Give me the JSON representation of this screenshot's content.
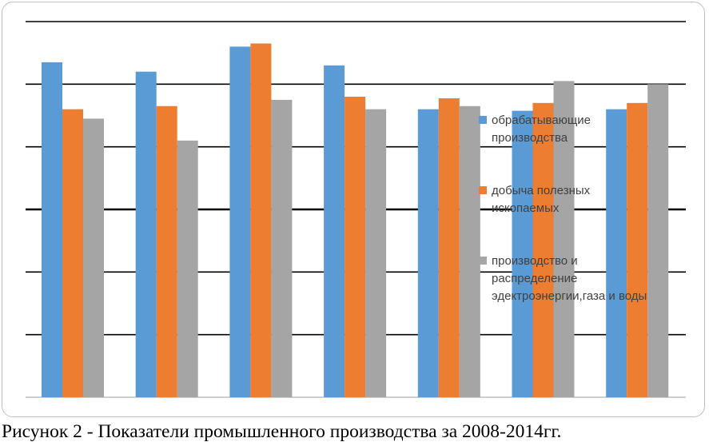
{
  "caption": "Рисунок 2 - Показатели промышленного производства за 2008-2014гг.",
  "chart_data": {
    "type": "bar",
    "categories": [
      "",
      "",
      "",
      "",
      "",
      "",
      ""
    ],
    "series": [
      {
        "name": "обрабатывающие производства",
        "color": "#5b9bd5",
        "values": [
          1.07,
          1.04,
          1.12,
          1.06,
          0.92,
          0.915,
          0.92
        ]
      },
      {
        "name": "добыча полезных ископаемых",
        "color": "#ed7d31",
        "values": [
          0.92,
          0.93,
          1.13,
          0.96,
          0.955,
          0.94,
          0.94
        ]
      },
      {
        "name": "производство и распределение эдектроэнергии,газа и воды",
        "color": "#a5a5a5",
        "values": [
          0.89,
          0.82,
          0.95,
          0.92,
          0.93,
          1.01,
          1.0
        ]
      }
    ],
    "ylim": [
      0,
      1.2
    ],
    "gridlines": [
      0,
      0.2,
      0.4,
      0.6,
      0.8,
      1.0,
      1.2
    ],
    "grid": true,
    "legend_position": "right",
    "legend_lines": [
      [
        "обрабатывающие",
        "производства"
      ],
      [
        "добыча полезных",
        "ископаемых"
      ],
      [
        "производство и",
        "распределение",
        "эдектроэнергии,газа и воды"
      ]
    ]
  }
}
